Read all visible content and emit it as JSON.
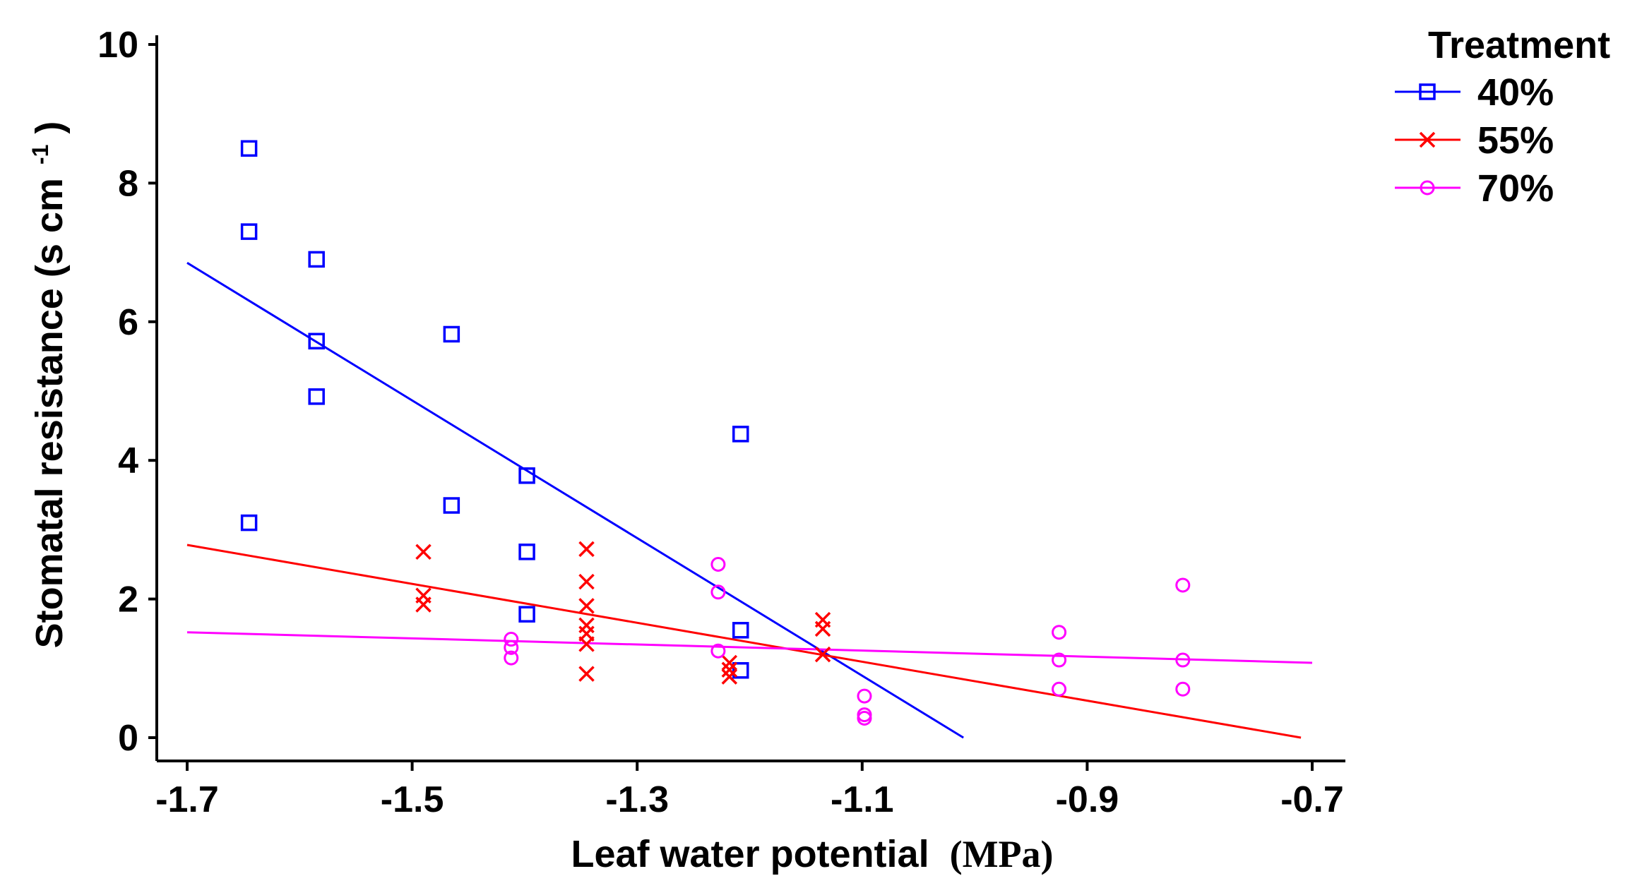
{
  "chart_data": {
    "type": "scatter",
    "title": "",
    "xlabel": "Leaf water potential",
    "xlabel_unit": "(MPa)",
    "ylabel": "Stomatal resistance (s cm",
    "ylabel_sup": "-1",
    "ylabel_close": ")",
    "xlim": [
      -1.7,
      -0.7
    ],
    "ylim": [
      0,
      10
    ],
    "x_ticks": [
      -1.7,
      -1.5,
      -1.3,
      -1.1,
      -0.9,
      -0.7
    ],
    "x_tick_labels": [
      "-1.7",
      "-1.5",
      "-1.3",
      "-1.1",
      "-0.9",
      "-0.7"
    ],
    "y_ticks": [
      0,
      2,
      4,
      6,
      8,
      10
    ],
    "y_tick_labels": [
      "0",
      "2",
      "4",
      "6",
      "8",
      "10"
    ],
    "grid": false,
    "legend": {
      "title": "Treatment",
      "position": "top-right"
    },
    "series": [
      {
        "name": "40%",
        "color": "#0000ff",
        "marker": "square",
        "points": [
          [
            -1.645,
            8.5
          ],
          [
            -1.645,
            7.3
          ],
          [
            -1.645,
            3.1
          ],
          [
            -1.585,
            6.9
          ],
          [
            -1.585,
            5.72
          ],
          [
            -1.585,
            4.92
          ],
          [
            -1.465,
            5.82
          ],
          [
            -1.465,
            3.35
          ],
          [
            -1.398,
            3.78
          ],
          [
            -1.398,
            2.68
          ],
          [
            -1.398,
            1.78
          ],
          [
            -1.208,
            4.38
          ],
          [
            -1.208,
            1.55
          ],
          [
            -1.208,
            0.97
          ]
        ],
        "fit": {
          "x_start": -1.7,
          "y_start": 6.85,
          "x_end": -1.01,
          "y_end": 0.0
        }
      },
      {
        "name": "55%",
        "color": "#ff0000",
        "marker": "x",
        "points": [
          [
            -1.49,
            2.68
          ],
          [
            -1.49,
            2.05
          ],
          [
            -1.49,
            1.92
          ],
          [
            -1.345,
            2.72
          ],
          [
            -1.345,
            2.25
          ],
          [
            -1.345,
            1.9
          ],
          [
            -1.345,
            1.62
          ],
          [
            -1.345,
            1.5
          ],
          [
            -1.345,
            1.35
          ],
          [
            -1.345,
            0.92
          ],
          [
            -1.218,
            1.08
          ],
          [
            -1.218,
            0.98
          ],
          [
            -1.218,
            0.88
          ],
          [
            -1.135,
            1.7
          ],
          [
            -1.135,
            1.57
          ],
          [
            -1.135,
            1.2
          ]
        ],
        "fit": {
          "x_start": -1.7,
          "y_start": 2.78,
          "x_end": -0.71,
          "y_end": 0.0
        }
      },
      {
        "name": "70%",
        "color": "#ff00ff",
        "marker": "circle",
        "points": [
          [
            -1.412,
            1.42
          ],
          [
            -1.412,
            1.3
          ],
          [
            -1.412,
            1.15
          ],
          [
            -1.228,
            2.5
          ],
          [
            -1.228,
            2.1
          ],
          [
            -1.228,
            1.25
          ],
          [
            -1.098,
            0.6
          ],
          [
            -1.098,
            0.33
          ],
          [
            -1.098,
            0.28
          ],
          [
            -0.925,
            1.52
          ],
          [
            -0.925,
            1.12
          ],
          [
            -0.925,
            0.7
          ],
          [
            -0.815,
            2.2
          ],
          [
            -0.815,
            1.12
          ],
          [
            -0.815,
            0.7
          ]
        ],
        "fit": {
          "x_start": -1.7,
          "y_start": 1.52,
          "x_end": -0.7,
          "y_end": 1.08
        }
      }
    ]
  }
}
